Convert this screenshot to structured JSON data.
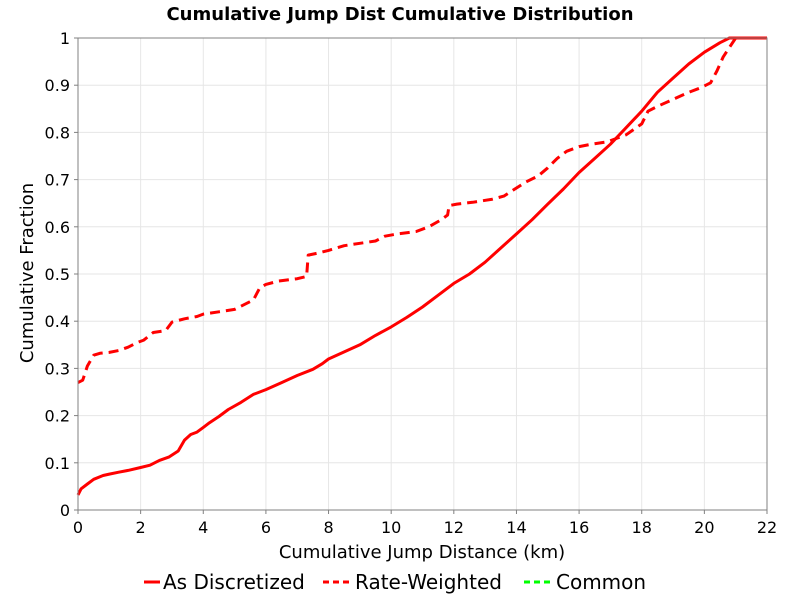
{
  "chart_data": {
    "type": "line",
    "title": "Cumulative Jump Dist Cumulative Distribution",
    "xlabel": "Cumulative Jump Distance (km)",
    "ylabel": "Cumulative Fraction",
    "xlim": [
      0,
      22
    ],
    "ylim": [
      0,
      1
    ],
    "xticks": [
      "0",
      "2",
      "4",
      "6",
      "8",
      "10",
      "12",
      "14",
      "16",
      "18",
      "20",
      "22"
    ],
    "yticks": [
      "0",
      "0.1",
      "0.2",
      "0.3",
      "0.4",
      "0.5",
      "0.6",
      "0.7",
      "0.8",
      "0.9",
      "1"
    ],
    "grid": true,
    "legend_position": "bottom",
    "series": [
      {
        "name": "As Discretized",
        "color": "#ff0000",
        "dash": "solid",
        "x": [
          0,
          0.1,
          0.3,
          0.5,
          0.8,
          1.0,
          1.3,
          1.6,
          2.0,
          2.3,
          2.6,
          2.9,
          3.2,
          3.4,
          3.6,
          3.8,
          4.0,
          4.2,
          4.5,
          4.8,
          5.2,
          5.6,
          6.0,
          6.5,
          7.0,
          7.5,
          7.8,
          8.0,
          8.5,
          9.0,
          9.5,
          10.0,
          10.5,
          11.0,
          11.5,
          12.0,
          12.5,
          13.0,
          13.5,
          14.0,
          14.5,
          15.0,
          15.5,
          16.0,
          16.5,
          17.0,
          17.5,
          18.0,
          18.5,
          19.0,
          19.5,
          20.0,
          20.5,
          20.8,
          21.0,
          22.0
        ],
        "y": [
          0.032,
          0.045,
          0.055,
          0.065,
          0.073,
          0.076,
          0.08,
          0.084,
          0.09,
          0.095,
          0.105,
          0.112,
          0.125,
          0.148,
          0.16,
          0.165,
          0.175,
          0.185,
          0.198,
          0.213,
          0.228,
          0.245,
          0.255,
          0.27,
          0.285,
          0.298,
          0.31,
          0.32,
          0.335,
          0.35,
          0.37,
          0.388,
          0.408,
          0.43,
          0.455,
          0.48,
          0.5,
          0.525,
          0.555,
          0.585,
          0.615,
          0.648,
          0.68,
          0.715,
          0.745,
          0.775,
          0.81,
          0.845,
          0.885,
          0.915,
          0.945,
          0.97,
          0.99,
          1.0,
          1.0,
          1.0
        ]
      },
      {
        "name": "Rate-Weighted",
        "color": "#ff0000",
        "dash": "dashed",
        "x": [
          0,
          0.15,
          0.3,
          0.5,
          0.7,
          1.0,
          1.3,
          1.6,
          1.9,
          2.1,
          2.4,
          2.8,
          3.0,
          3.4,
          3.8,
          4.0,
          4.5,
          5.0,
          5.3,
          5.6,
          5.8,
          6.0,
          6.4,
          7.0,
          7.3,
          7.35,
          7.7,
          8.0,
          8.5,
          9.0,
          9.5,
          9.8,
          10.2,
          10.8,
          11.2,
          11.6,
          11.8,
          11.85,
          12.1,
          12.6,
          13.2,
          13.6,
          13.9,
          14.3,
          14.7,
          15.0,
          15.3,
          15.6,
          16.0,
          16.4,
          16.9,
          17.5,
          18.0,
          18.2,
          18.5,
          19.0,
          19.5,
          19.9,
          20.2,
          20.4,
          20.6,
          21.0,
          22.0
        ],
        "y": [
          0.27,
          0.275,
          0.305,
          0.328,
          0.332,
          0.334,
          0.338,
          0.345,
          0.355,
          0.36,
          0.376,
          0.38,
          0.398,
          0.405,
          0.41,
          0.415,
          0.42,
          0.425,
          0.435,
          0.445,
          0.47,
          0.478,
          0.485,
          0.49,
          0.495,
          0.54,
          0.545,
          0.55,
          0.56,
          0.565,
          0.57,
          0.58,
          0.585,
          0.59,
          0.6,
          0.615,
          0.625,
          0.645,
          0.648,
          0.652,
          0.658,
          0.665,
          0.678,
          0.695,
          0.708,
          0.725,
          0.745,
          0.76,
          0.77,
          0.775,
          0.78,
          0.795,
          0.818,
          0.845,
          0.855,
          0.87,
          0.885,
          0.895,
          0.905,
          0.93,
          0.96,
          1.0,
          1.0
        ]
      },
      {
        "name": "Common",
        "color": "#00ff00",
        "dash": "dashed",
        "x": [],
        "y": []
      }
    ]
  }
}
